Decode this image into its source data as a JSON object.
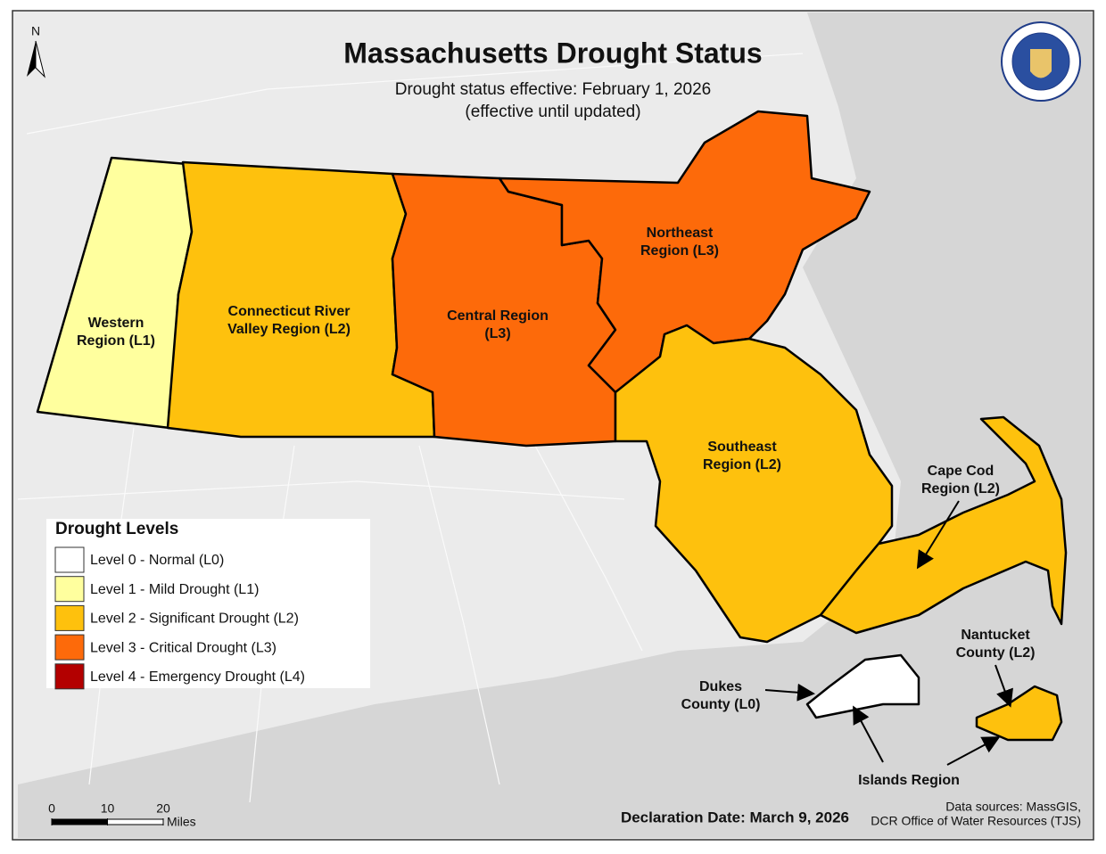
{
  "title": "Massachusetts Drought Status",
  "subtitle": [
    "Drought status effective: February 1, 2026",
    "(effective until updated)"
  ],
  "north": "N",
  "regions": [
    {
      "label": [
        "Western",
        "Region (L1)"
      ],
      "level": 1
    },
    {
      "label": [
        "Connecticut River",
        "Valley Region (L2)"
      ],
      "level": 2
    },
    {
      "label": [
        "Central Region",
        "(L3)"
      ],
      "level": 3
    },
    {
      "label": [
        "Northeast",
        "Region (L3)"
      ],
      "level": 3
    },
    {
      "label": [
        "Southeast",
        "Region (L2)"
      ],
      "level": 2
    },
    {
      "label": [
        "Cape Cod",
        "Region (L2)"
      ],
      "level": 2
    },
    {
      "label": [
        "Dukes",
        "County (L0)"
      ],
      "level": 0
    },
    {
      "label": [
        "Nantucket",
        "County (L2)"
      ],
      "level": 2
    }
  ],
  "islands_label": "Islands Region",
  "legend": {
    "title": "Drought Levels",
    "items": [
      {
        "label": "Level 0 - Normal (L0)",
        "color": "#ffffff"
      },
      {
        "label": "Level 1 - Mild Drought (L1)",
        "color": "#ffff9e"
      },
      {
        "label": "Level 2 - Significant Drought (L2)",
        "color": "#fec10d"
      },
      {
        "label": "Level 3 - Critical Drought (L3)",
        "color": "#fd6a0a"
      },
      {
        "label": "Level 4 - Emergency Drought (L4)",
        "color": "#b30000"
      }
    ]
  },
  "scale_bar": {
    "ticks": [
      0,
      10,
      20
    ],
    "unit": "Miles"
  },
  "declaration": "Declaration Date: March 9, 2026",
  "sources": [
    "Data sources: MassGIS,",
    "DCR Office of Water Resources (TJS)"
  ]
}
